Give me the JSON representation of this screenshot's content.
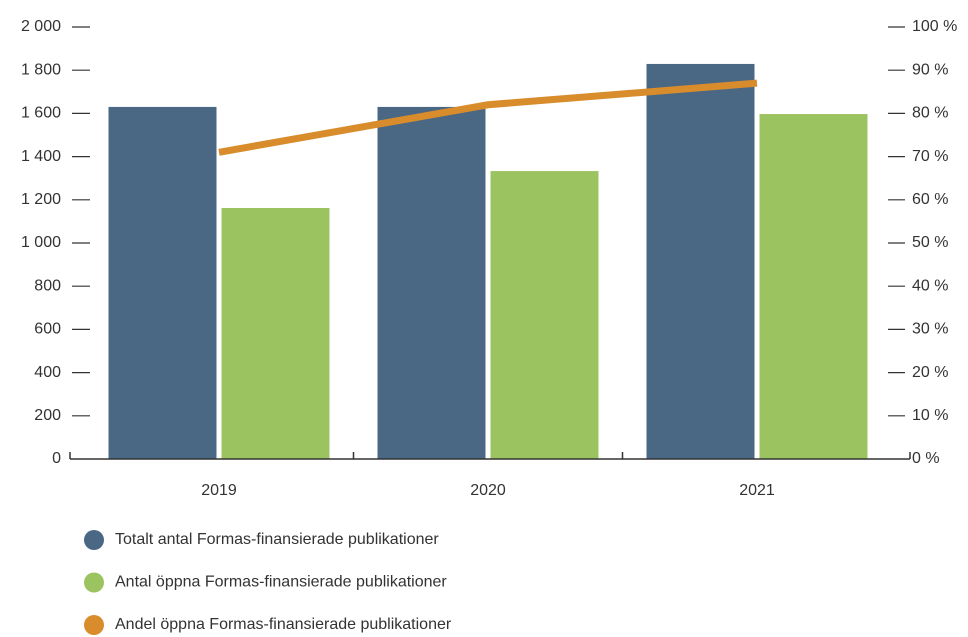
{
  "chart_data": {
    "type": "bar",
    "categories": [
      "2019",
      "2020",
      "2021"
    ],
    "series": [
      {
        "name": "Totalt antal Formas-finansierade publikationer",
        "color": "#4a6884",
        "values": [
          1630,
          1630,
          1829
        ]
      },
      {
        "name": "Antal öppna Formas-finansierade publikationer",
        "color": "#9bc460",
        "values": [
          1162,
          1333,
          1597
        ]
      },
      {
        "name": "Andel öppna Formas-finansierade publikationer",
        "color": "#d98c2b",
        "values": [
          71,
          82,
          87
        ],
        "axis": "y2",
        "type": "line"
      }
    ],
    "ylim": [
      0,
      2000
    ],
    "yticks": [
      0,
      200,
      400,
      600,
      800,
      {
        "value": 1000,
        "label": "1 000"
      },
      {
        "value": 1200,
        "label": "1 200"
      },
      {
        "value": 1400,
        "label": "1 400"
      },
      {
        "value": 1600,
        "label": "1 600"
      },
      {
        "value": 1800,
        "label": "1 800"
      },
      {
        "value": 2000,
        "label": "2 000"
      }
    ],
    "y2lim": [
      0,
      100
    ],
    "y2ticks": [
      {
        "value": 0,
        "label": "0 %"
      },
      {
        "value": 10,
        "label": "10 %"
      },
      {
        "value": 20,
        "label": "20 %"
      },
      {
        "value": 30,
        "label": "30 %"
      },
      {
        "value": 40,
        "label": "40 %"
      },
      {
        "value": 50,
        "label": "50 %"
      },
      {
        "value": 60,
        "label": "60 %"
      },
      {
        "value": 70,
        "label": "70 %"
      },
      {
        "value": 80,
        "label": "80 %"
      },
      {
        "value": 90,
        "label": "90 %"
      },
      {
        "value": 100,
        "label": "100 %"
      }
    ],
    "legend": "bottom"
  }
}
